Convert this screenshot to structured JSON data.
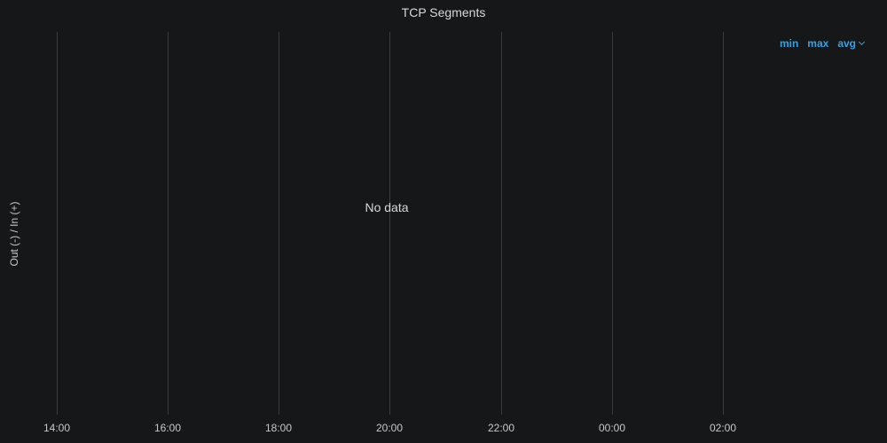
{
  "panel": {
    "title": "TCP Segments",
    "no_data_text": "No data",
    "y_axis_label": "Out (-) / In (+)"
  },
  "legend_sort": {
    "options": [
      "min",
      "max",
      "avg"
    ],
    "active": "avg",
    "color": "#33a2e5"
  },
  "x_axis": {
    "ticks": [
      "14:00",
      "16:00",
      "18:00",
      "20:00",
      "22:00",
      "00:00",
      "02:00"
    ]
  },
  "colors": {
    "background": "#161719",
    "gridline": "#3a3b3d",
    "text": "#d8d9da"
  }
}
